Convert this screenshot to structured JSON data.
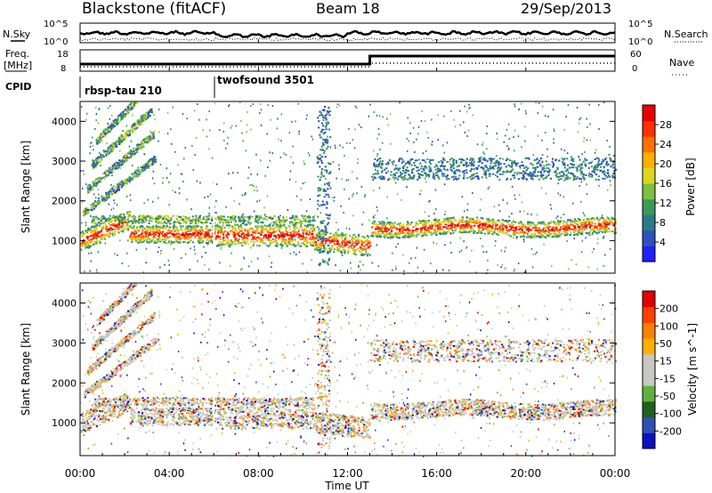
{
  "header": {
    "station": "Blackstone (fitACF)",
    "beam": "Beam 18",
    "date": "29/Sep/2013"
  },
  "top_panels": {
    "nsky_label": "N.Sky",
    "nsearch_label": "N.Search",
    "noise_tick_hi": "10^5",
    "noise_tick_lo": "10^0",
    "freq_label_1": "Freq.",
    "freq_label_2": "[MHz]",
    "freq_tick_hi": "18",
    "freq_tick_lo": "8",
    "nave_label": "Nave",
    "nave_tick_hi": "60",
    "nave_tick_lo": "0",
    "cpid_label": "CPID",
    "cpid_1": "rbsp-tau 210",
    "cpid_2": "twofsound 3501"
  },
  "chart_data": [
    {
      "type": "heatmap",
      "name": "power",
      "ylabel": "Slant Range [km]",
      "y_ticks": [
        "4000",
        "3000",
        "2000",
        "1000"
      ],
      "ylim": [
        180,
        4500
      ],
      "colorbar_label": "Power [dB]",
      "colorbar_ticks": [
        "28",
        "24",
        "20",
        "16",
        "12",
        "8",
        "4"
      ],
      "colorbar_colors": [
        "#2020ff",
        "#3050c0",
        "#2a7a8a",
        "#3b9a5a",
        "#7ec040",
        "#d8d820",
        "#ffb000",
        "#ff7000",
        "#ff3000",
        "#e80000"
      ]
    },
    {
      "type": "heatmap",
      "name": "velocity",
      "ylabel": "Slant Range [km]",
      "y_ticks": [
        "4000",
        "3000",
        "2000",
        "1000"
      ],
      "ylim": [
        180,
        4500
      ],
      "colorbar_label": "Velocity [m s^-1]",
      "colorbar_ticks": [
        "200",
        "100",
        "50",
        "15",
        "-15",
        "-50",
        "-100",
        "-200"
      ],
      "colorbar_colors": [
        "#1010c0",
        "#3050b0",
        "#206020",
        "#60b040",
        "#c8c8c0",
        "#c8c8c0",
        "#ffb000",
        "#ff8000",
        "#ff4000",
        "#e00000"
      ]
    }
  ],
  "time_axis": {
    "label": "Time UT",
    "ticks": [
      "00:00",
      "04:00",
      "08:00",
      "12:00",
      "16:00",
      "20:00",
      "00:00"
    ],
    "xlim_hours": [
      0,
      24
    ]
  }
}
